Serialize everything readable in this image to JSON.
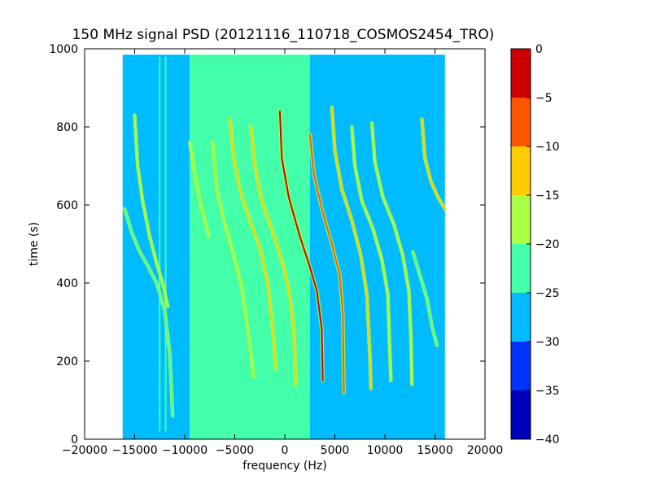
{
  "chart_data": {
    "type": "heatmap",
    "title": "150 MHz signal PSD (20121116_110718_COSMOS2454_TRO)",
    "xlabel": "frequency (Hz)",
    "ylabel": "time (s)",
    "xlim": [
      -20000,
      20000
    ],
    "ylim": [
      0,
      1000
    ],
    "data_extent": {
      "x": [
        -16200,
        16000
      ],
      "y": [
        0,
        985
      ]
    },
    "xticks": [
      -20000,
      -15000,
      -10000,
      -5000,
      0,
      5000,
      10000,
      15000,
      20000
    ],
    "xtick_labels": [
      "−20000",
      "−15000",
      "−10000",
      "−5000",
      "0",
      "5000",
      "10000",
      "15000",
      "20000"
    ],
    "yticks": [
      0,
      200,
      400,
      600,
      800,
      1000
    ],
    "ytick_labels": [
      "0",
      "200",
      "400",
      "600",
      "800",
      "1000"
    ],
    "background_regions": [
      {
        "x": [
          -16200,
          -9500
        ],
        "level": -27
      },
      {
        "x": [
          -9500,
          2500
        ],
        "level": -23
      },
      {
        "x": [
          2500,
          16000
        ],
        "level": -27
      }
    ],
    "colorbar": {
      "levels": [
        -40,
        -35,
        -30,
        -25,
        -20,
        -15,
        -10,
        -5,
        0
      ],
      "tick_labels": [
        "−40",
        "−35",
        "−30",
        "−25",
        "−20",
        "−15",
        "−10",
        "−5",
        "0"
      ],
      "colors": [
        "#0000bb",
        "#0033ff",
        "#00bbff",
        "#44ffaa",
        "#aaff44",
        "#ffcc00",
        "#ff5500",
        "#cc0000"
      ]
    },
    "series": [
      {
        "points": [
          [
            -15000,
            830
          ],
          [
            -14700,
            700
          ],
          [
            -14200,
            610
          ],
          [
            -13500,
            520
          ],
          [
            -12800,
            450
          ],
          [
            -12200,
            400
          ],
          [
            -11700,
            340
          ]
        ],
        "level": -18
      },
      {
        "points": [
          [
            -16000,
            590
          ],
          [
            -15300,
            530
          ],
          [
            -14500,
            480
          ],
          [
            -13600,
            440
          ],
          [
            -12800,
            400
          ],
          [
            -12000,
            330
          ],
          [
            -11500,
            220
          ],
          [
            -11200,
            60
          ]
        ],
        "level": -22
      },
      {
        "points": [
          [
            -9500,
            760
          ],
          [
            -9000,
            680
          ],
          [
            -8400,
            600
          ],
          [
            -7600,
            520
          ]
        ],
        "level": -18
      },
      {
        "points": [
          [
            -7200,
            760
          ],
          [
            -6800,
            640
          ],
          [
            -6100,
            560
          ],
          [
            -5200,
            480
          ],
          [
            -4300,
            390
          ],
          [
            -3600,
            260
          ],
          [
            -3100,
            160
          ]
        ],
        "level": -18
      },
      {
        "points": [
          [
            -5500,
            820
          ],
          [
            -5100,
            720
          ],
          [
            -4500,
            640
          ],
          [
            -3500,
            560
          ],
          [
            -2500,
            490
          ],
          [
            -1700,
            400
          ],
          [
            -1200,
            280
          ],
          [
            -900,
            180
          ]
        ],
        "level": -12
      },
      {
        "points": [
          [
            -3400,
            800
          ],
          [
            -3000,
            700
          ],
          [
            -2300,
            610
          ],
          [
            -1200,
            530
          ],
          [
            -200,
            450
          ],
          [
            500,
            370
          ],
          [
            900,
            280
          ],
          [
            1100,
            140
          ]
        ],
        "level": -12
      },
      {
        "points": [
          [
            -500,
            840
          ],
          [
            -300,
            720
          ],
          [
            400,
            620
          ],
          [
            1500,
            520
          ],
          [
            2400,
            450
          ],
          [
            3200,
            380
          ],
          [
            3700,
            280
          ],
          [
            3800,
            150
          ]
        ],
        "level": -3
      },
      {
        "points": [
          [
            2500,
            780
          ],
          [
            2900,
            680
          ],
          [
            3700,
            590
          ],
          [
            4700,
            500
          ],
          [
            5500,
            420
          ],
          [
            5800,
            320
          ],
          [
            5900,
            120
          ]
        ],
        "level": -10
      },
      {
        "points": [
          [
            4700,
            850
          ],
          [
            5000,
            740
          ],
          [
            5700,
            640
          ],
          [
            6700,
            560
          ],
          [
            7600,
            470
          ],
          [
            8200,
            370
          ],
          [
            8500,
            210
          ],
          [
            8600,
            130
          ]
        ],
        "level": -12
      },
      {
        "points": [
          [
            6700,
            800
          ],
          [
            7000,
            700
          ],
          [
            7700,
            610
          ],
          [
            8800,
            540
          ],
          [
            9700,
            460
          ],
          [
            10300,
            370
          ],
          [
            10500,
            220
          ],
          [
            10600,
            150
          ]
        ],
        "level": -18
      },
      {
        "points": [
          [
            8700,
            810
          ],
          [
            9000,
            710
          ],
          [
            9800,
            620
          ],
          [
            10900,
            550
          ],
          [
            11800,
            470
          ],
          [
            12400,
            380
          ],
          [
            12600,
            260
          ],
          [
            12700,
            140
          ]
        ],
        "level": -18
      },
      {
        "points": [
          [
            13700,
            820
          ],
          [
            14000,
            720
          ],
          [
            14600,
            660
          ],
          [
            15300,
            620
          ],
          [
            16000,
            590
          ]
        ],
        "level": -15
      },
      {
        "points": [
          [
            12800,
            480
          ],
          [
            13500,
            420
          ],
          [
            14200,
            360
          ],
          [
            14700,
            290
          ],
          [
            15200,
            240
          ]
        ],
        "level": -22
      }
    ],
    "vertical_lines": [
      {
        "x": -12500,
        "y": [
          20,
          980
        ],
        "level": -22
      },
      {
        "x": -11900,
        "y": [
          20,
          980
        ],
        "level": -22
      }
    ]
  }
}
